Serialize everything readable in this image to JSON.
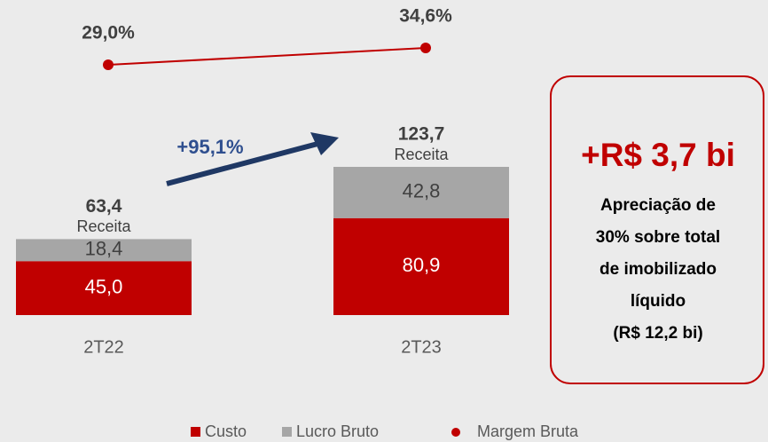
{
  "chart_data": {
    "type": "bar",
    "stacked": true,
    "categories": [
      "2T22",
      "2T23"
    ],
    "series": [
      {
        "name": "Custo",
        "color": "#c00000",
        "values": [
          45.0,
          80.9
        ],
        "value_labels": [
          "45,0",
          "80,9"
        ]
      },
      {
        "name": "Lucro Bruto",
        "color": "#a6a6a6",
        "values": [
          18.4,
          42.8
        ],
        "value_labels": [
          "18,4",
          "42,8"
        ]
      },
      {
        "name": "Margem Bruta",
        "type": "line",
        "axis": "y2",
        "color": "#c00000",
        "values": [
          29.0,
          34.6
        ],
        "value_labels": [
          "29,0%",
          "34,6%"
        ]
      }
    ],
    "totals": [
      63.4,
      123.7
    ],
    "total_labels": [
      "63,4",
      "123,7"
    ],
    "total_captions": [
      "Receita",
      "Receita"
    ],
    "ylim": [
      0,
      130
    ],
    "y2lim": [
      20,
      40
    ],
    "growth_annotation": "+95,1%",
    "highlight": {
      "headline": "+R$ 3,7 bi",
      "lines": [
        "Apreciação de",
        "30% sobre total",
        "de imobilizado",
        "líquido",
        "(R$ 12,2 bi)"
      ]
    }
  }
}
